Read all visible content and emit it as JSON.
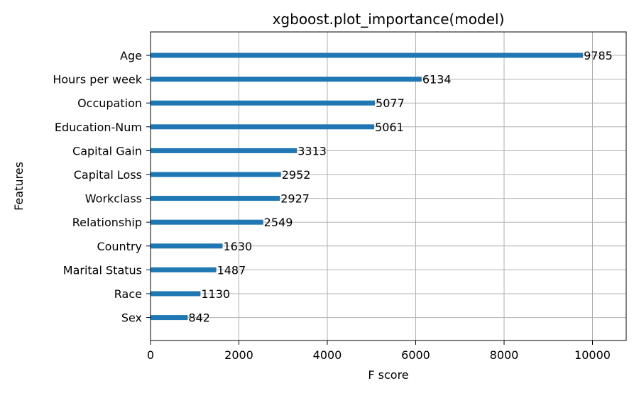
{
  "chart_data": {
    "type": "bar",
    "orientation": "horizontal",
    "title": "xgboost.plot_importance(model)",
    "xlabel": "F score",
    "ylabel": "Features",
    "categories": [
      "Age",
      "Hours per week",
      "Occupation",
      "Education-Num",
      "Capital Gain",
      "Capital Loss",
      "Workclass",
      "Relationship",
      "Country",
      "Marital Status",
      "Race",
      "Sex"
    ],
    "values": [
      9785,
      6134,
      5077,
      5061,
      3313,
      2952,
      2927,
      2549,
      1630,
      1487,
      1130,
      842
    ],
    "data_labels": [
      "9785",
      "6134",
      "5077",
      "5061",
      "3313",
      "2952",
      "2927",
      "2549",
      "1630",
      "1487",
      "1130",
      "842"
    ],
    "xticks": [
      0,
      2000,
      4000,
      6000,
      8000,
      10000
    ],
    "xtick_labels": [
      "0",
      "2000",
      "4000",
      "6000",
      "8000",
      "10000"
    ],
    "xlim": [
      0,
      10763
    ],
    "grid": true,
    "bar_color": "#1f77b4",
    "legend": "none"
  }
}
